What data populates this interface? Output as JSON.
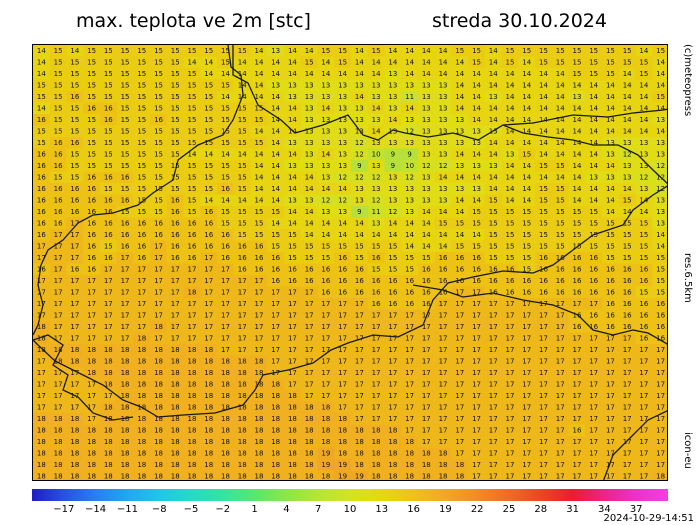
{
  "header": {
    "title": "max. teplota ve 2m [stc]",
    "date": "streda 30.10.2024"
  },
  "side_labels": {
    "brand": "(c)meteopress",
    "resolution": "res.6.5km",
    "model": "icon-eu"
  },
  "timestamp": "2024-10-29-14:51",
  "map": {
    "cols": 38,
    "rows": 38,
    "value_colors": {
      "9": "#b6e03a",
      "10": "#c3e130",
      "11": "#cbe12c",
      "12": "#d6e020",
      "13": "#e0dc16",
      "14": "#e6d510",
      "15": "#eacc12",
      "16": "#edc215",
      "17": "#efb81a",
      "18": "#f0b020",
      "19": "#efa824"
    },
    "grid_values": [
      "14 15 14 15 15 15 15 15 15 15 15 15 15 14 13 14 14 15 15 14 15 14 14 14 14 15 15 14 15 15 15 15 15 15 15 15 14 15",
      "14 15 15 15 15 15 15 15 15 14 14 15 14 14 14 14 15 14 15 14 14 14 14 14 14 14 15 14 15 14 15 15 15 15 15 15 15 14",
      "14 15 15 15 15 15 15 15 15 15 14 14 14 14 14 14 14 14 14 14 14 13 14 14 14 14 14 14 14 14 14 14 15 15 15 14 15 14",
      "15 15 15 15 15 15 15 15 15 15 15 15 14 14 13 13 13 13 13 13 13 13 13 13 13 14 14 14 14 14 14 14 14 14 14 14 14 14",
      "15 15 16 15 15 15 15 15 15 15 15 14 14 14 14 13 13 13 13 14 13 13 11 13 13 14 14 13 14 14 14 14 13 14 14 14 14 15",
      "14 15 15 16 16 15 15 15 15 15 15 15 15 15 14 14 13 14 13 13 14 13 14 13 13 14 14 14 14 14 14 14 14 14 14 14 14 14",
      "16 15 15 15 16 15 15 16 15 15 15 15 15 15 14 14 13 13 13 13 13 14 13 13 13 13 14 14 14 14 14 14 14 14 14 14 14 13",
      "15 15 15 15 15 15 15 15 15 15 15 15 15 14 14 14 13 13 13 13 14 13 12 13 13 13 13 13 14 14 14 14 14 14 14 14 14 14",
      "15 16 16 15 15 15 15 15 15 15 15 15 15 15 14 13 13 13 13 12 13 13 13 13 13 13 13 14 14 14 14 14 14 14 13 13 13 13",
      "16 16 15 15 15 15 15 15 15 14 14 14 14 14 14 14 13 14 13 12 10  9  9 13 13 14 14 14 13 15 14 14 14 14 13 12 13 13",
      "16 16 15 15 15 15 15 15 15 15 15 15 15 14 14 13 13 13 13  9 13  9 10 12 12 13 13 13 14 14 15 15 14 14 14 13 13 12",
      "16 15 15 16 16 16 15 15 15 15 15 15 15 14 14 14 14 13 12 12 12 13 12 13 14 14 14 14 14 14 14 14 14 13 13 13 12 12",
      "16 16 16 16 15 15 15 15 15 15 15 16 15 14 14 14 14 14 14 13 13 13 13 13 13 13 13 14 14 14 15 15 14 14 14 14 13 12",
      "16 16 16 16 16 16 15 15 16 15 14 14 14 14 14 13 13 12 12 13 12 13 13 13 13 14 14 15 14 14 15 15 14 14 14 15 14 13",
      "16 16 16 16 16 15 15 15 16 15 16 15 15 15 15 14 14 13 13  9 11 12 13 14 14 14 15 15 15 15 15 15 15 15 14 14 14 13",
      "16 16 17 16 16 16 16 16 16 16 16 15 15 15 14 14 14 14 14 14 13 14 14 14 15 15 15 15 15 15 15 15 15 15 15 15 15 13",
      "16 17 17 16 16 16 16 16 16 16 16 16 15 15 15 15 14 14 14 14 14 14 14 14 14 14 14 15 15 15 15 15 15 15 15 15 15 14",
      "17 17 17 16 15 16 16 17 16 16 16 16 16 16 15 15 15 15 15 15 15 15 14 14 14 15 15 15 15 15 15 15 15 15 15 15 15 14",
      "17 17 17 16 16 17 16 17 16 16 17 16 16 16 16 15 15 15 16 15 16 15 15 15 16 16 16 15 15 15 16 16 16 16 15 15 15 15",
      "16 17 16 16 17 17 17 17 17 17 17 17 16 16 16 16 16 16 16 16 15 15 15 16 16 16 16 16 16 15 16 16 16 16 16 16 16 15",
      "17 17 17 17 17 17 17 17 17 17 17 17 17 17 16 16 16 16 16 16 16 16 16 16 16 16 16 16 16 16 16 16 16 16 16 16 16 15",
      "17 17 17 17 17 17 17 17 17 18 17 17 17 17 17 17 17 16 16 16 16 16 16 16 16 17 17 16 16 16 16 16 16 16 16 16 15 15",
      "17 17 17 17 17 17 17 17 17 17 17 17 17 17 17 17 17 17 17 17 16 16 16 16 17 17 17 17 17 17 17 17 17 17 16 16 16 16",
      "17 17 17 17 17 17 17 17 17 17 17 17 17 17 17 17 17 17 17 17 17 17 17 17 17 17 17 17 17 17 17 17 16 16 16 16 16 16",
      "18 17 17 17 17 17 17 18 17 17 17 17 17 17 17 17 17 17 17 17 17 17 17 17 17 17 17 17 17 17 17 17 16 16 16 16 16 16",
      "18 17 17 17 17 17 18 17 17 17 17 17 17 17 17 17 17 17 17 17 17 17 17 17 17 17 17 17 17 17 17 17 17 17 17 17 16 16",
      "18 18 18 18 18 18 18 18 18 18 18 17 17 17 17 17 17 17 17 17 17 17 17 17 17 17 17 17 17 17 17 17 17 17 17 17 17 17",
      "17 18 18 18 18 18 18 18 18 18 18 18 18 18 17 17 17 17 17 17 17 17 17 17 17 17 17 17 17 17 17 17 17 17 17 17 17 17",
      "17 17 17 18 18 18 18 18 18 18 18 18 18 18 17 17 17 17 17 17 17 17 17 17 17 17 17 17 17 17 17 17 17 17 17 17 17 17",
      "17 17 17 17 18 18 18 18 18 18 18 18 18 18 18 17 17 17 17 17 17 17 17 17 17 17 17 17 17 17 17 17 17 17 17 17 17 17",
      "17 17 17 17 17 18 18 18 18 18 18 18 18 18 18 18 17 17 17 17 17 17 17 17 17 17 17 17 17 17 17 17 17 17 17 17 17 17",
      "17 17 17 17 18 18 18 18 18 18 18 18 18 18 18 18 18 18 17 17 17 17 17 17 17 17 17 17 17 17 17 17 17 17 17 17 17 17",
      "18 18 18 17 18 18 18 18 18 18 18 18 18 18 18 18 18 18 18 17 17 17 17 17 17 17 17 17 17 17 17 17 17 17 17 17 17 17",
      "18 18 18 18 18 18 18 18 18 18 18 18 18 18 18 18 18 18 18 18 18 18 17 17 17 17 17 17 17 17 17 17 16 17 17 17 17 17",
      "18 18 18 18 18 18 18 18 18 18 18 18 18 18 18 18 18 18 18 18 18 18 18 17 17 17 17 17 17 17 17 17 17 17 17 17 17 17",
      "18 18 18 18 18 18 18 18 18 18 18 18 18 18 18 18 18 19 18 18 18 18 18 18 18 17 17 17 17 17 17 17 17 17 17 17 17 17",
      "18 18 18 18 18 18 18 18 18 18 18 18 18 18 18 18 18 19 19 18 18 18 18 18 18 18 17 17 17 17 17 17 17 17 17 17 17 17",
      "18 18 18 18 18 18 18 18 18 18 18 18 18 18 18 18 18 18 19 19 18 18 18 18 18 18 17 17 17 17 17 17 17 17 17 17 17 18"
    ],
    "border_color": "#1a1a1a"
  },
  "legend": {
    "labels": [
      "−17",
      "−14",
      "−11",
      "−8",
      "−5",
      "−2",
      "1",
      "4",
      "7",
      "10",
      "13",
      "16",
      "19",
      "22",
      "25",
      "28",
      "31",
      "34",
      "37"
    ],
    "stops": [
      {
        "v": -20,
        "c": "#1e1ec8"
      },
      {
        "v": -17,
        "c": "#2850e6"
      },
      {
        "v": -14,
        "c": "#2a7ef0"
      },
      {
        "v": -11,
        "c": "#20a8f0"
      },
      {
        "v": -8,
        "c": "#1cc8e6"
      },
      {
        "v": -5,
        "c": "#22dcc6"
      },
      {
        "v": -2,
        "c": "#30e6a0"
      },
      {
        "v": 1,
        "c": "#5ae66e"
      },
      {
        "v": 4,
        "c": "#8ce64a"
      },
      {
        "v": 7,
        "c": "#b4e632"
      },
      {
        "v": 10,
        "c": "#d2e41e"
      },
      {
        "v": 13,
        "c": "#e6d810"
      },
      {
        "v": 16,
        "c": "#eec218"
      },
      {
        "v": 19,
        "c": "#f0a824"
      },
      {
        "v": 22,
        "c": "#f08c28"
      },
      {
        "v": 25,
        "c": "#f06a28"
      },
      {
        "v": 28,
        "c": "#ee4424"
      },
      {
        "v": 31,
        "c": "#ec1c30"
      },
      {
        "v": 34,
        "c": "#ee2288"
      },
      {
        "v": 37,
        "c": "#f030c8"
      },
      {
        "v": 40,
        "c": "#f040e0"
      }
    ],
    "min": -20,
    "max": 40
  }
}
